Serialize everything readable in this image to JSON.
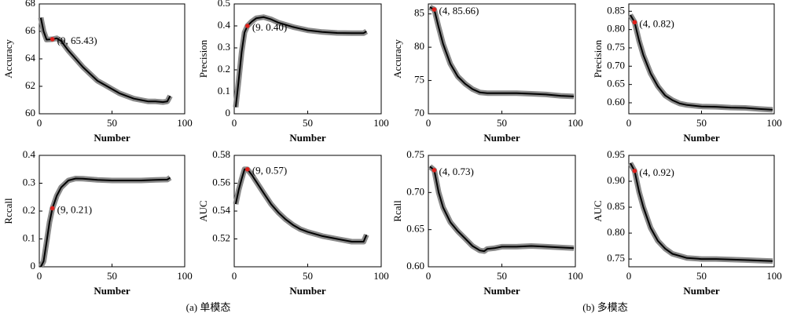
{
  "chart_data": [
    {
      "type": "line",
      "ylabel": "Accuracy",
      "xlabel": "Number",
      "color": "#000000",
      "x": [
        1,
        3,
        5,
        9,
        12,
        15,
        20,
        25,
        30,
        35,
        40,
        45,
        50,
        55,
        60,
        65,
        70,
        75,
        80,
        85,
        88,
        90
      ],
      "values": [
        67,
        66.0,
        65.4,
        65.43,
        65.5,
        65.3,
        64.6,
        64.0,
        63.4,
        62.9,
        62.4,
        62.1,
        61.8,
        61.5,
        61.3,
        61.1,
        61.0,
        60.9,
        60.9,
        60.85,
        60.9,
        61.3
      ],
      "xlim": [
        0,
        100
      ],
      "ylim": [
        60,
        68
      ],
      "xticks": [
        0,
        50,
        100
      ],
      "yticks": [
        60,
        62,
        64,
        66,
        68
      ],
      "highlight": {
        "x": 9,
        "y": 65.43,
        "label": "(9, 65.43)",
        "color": "#e0201b"
      }
    },
    {
      "type": "line",
      "ylabel": "Precision",
      "xlabel": "Number",
      "color": "#000000",
      "x": [
        1,
        3,
        5,
        7,
        9,
        12,
        15,
        20,
        25,
        30,
        40,
        50,
        60,
        70,
        80,
        88,
        90
      ],
      "values": [
        0.03,
        0.15,
        0.28,
        0.37,
        0.4,
        0.42,
        0.435,
        0.44,
        0.43,
        0.415,
        0.395,
        0.38,
        0.372,
        0.368,
        0.367,
        0.367,
        0.375
      ],
      "xlim": [
        0,
        100
      ],
      "ylim": [
        0,
        0.5
      ],
      "xticks": [
        0,
        50,
        100
      ],
      "yticks": [
        0,
        0.1,
        0.2,
        0.3,
        0.4,
        0.5
      ],
      "highlight": {
        "x": 9,
        "y": 0.4,
        "label": "(9. 0.40)",
        "color": "#e0201b"
      }
    },
    {
      "type": "line",
      "ylabel": "Accuracy",
      "xlabel": "Number",
      "color": "#000000",
      "x": [
        1,
        4,
        7,
        10,
        15,
        20,
        25,
        30,
        35,
        40,
        50,
        60,
        70,
        80,
        90,
        99
      ],
      "values": [
        86,
        85.66,
        83,
        80.5,
        77.5,
        75.6,
        74.5,
        73.7,
        73.2,
        73.1,
        73.1,
        73.1,
        73.0,
        72.9,
        72.7,
        72.6
      ],
      "xlim": [
        0,
        100
      ],
      "ylim": [
        70,
        86.5
      ],
      "xticks": [
        0,
        50,
        100
      ],
      "yticks": [
        70,
        75,
        80,
        85
      ],
      "highlight": {
        "x": 4,
        "y": 85.66,
        "label": "(4, 85.66)",
        "color": "#e0201b"
      }
    },
    {
      "type": "line",
      "ylabel": "Precision",
      "xlabel": "Number",
      "color": "#000000",
      "x": [
        1,
        4,
        7,
        10,
        15,
        20,
        25,
        30,
        35,
        40,
        50,
        60,
        70,
        80,
        90,
        99
      ],
      "values": [
        0.84,
        0.82,
        0.77,
        0.73,
        0.68,
        0.645,
        0.62,
        0.607,
        0.598,
        0.594,
        0.59,
        0.589,
        0.587,
        0.586,
        0.583,
        0.581
      ],
      "xlim": [
        0,
        100
      ],
      "ylim": [
        0.57,
        0.87
      ],
      "xticks": [
        0,
        50,
        100
      ],
      "yticks": [
        {
          "value": 0.6,
          "label": "0.60"
        },
        {
          "value": 0.65,
          "label": "0.65"
        },
        {
          "value": 0.7,
          "label": "0.70"
        },
        {
          "value": 0.75,
          "label": "0.75"
        },
        {
          "value": 0.8,
          "label": "0.80"
        },
        {
          "value": 0.85,
          "label": "0.85"
        }
      ],
      "highlight": {
        "x": 4,
        "y": 0.82,
        "label": "(4, 0.82)",
        "color": "#e0201b"
      }
    },
    {
      "type": "line",
      "ylabel": "Rccall",
      "xlabel": "Number",
      "color": "#000000",
      "x": [
        1,
        3,
        5,
        7,
        9,
        12,
        15,
        20,
        25,
        30,
        40,
        50,
        60,
        70,
        80,
        88,
        90
      ],
      "values": [
        0.0,
        0.02,
        0.09,
        0.16,
        0.21,
        0.255,
        0.285,
        0.31,
        0.317,
        0.316,
        0.312,
        0.31,
        0.31,
        0.31,
        0.312,
        0.313,
        0.32
      ],
      "xlim": [
        0,
        100
      ],
      "ylim": [
        0,
        0.4
      ],
      "xticks": [
        0,
        50,
        100
      ],
      "yticks": [
        0,
        0.1,
        0.2,
        0.3,
        0.4
      ],
      "highlight": {
        "x": 9,
        "y": 0.21,
        "label": "(9, 0.21)",
        "color": "#e0201b"
      }
    },
    {
      "type": "line",
      "ylabel": "AUC",
      "xlabel": "Number",
      "color": "#000000",
      "x": [
        1,
        3,
        5,
        7,
        9,
        12,
        15,
        20,
        25,
        30,
        35,
        40,
        45,
        50,
        60,
        70,
        80,
        88,
        90
      ],
      "values": [
        0.545,
        0.555,
        0.563,
        0.57,
        0.57,
        0.566,
        0.561,
        0.553,
        0.545,
        0.539,
        0.534,
        0.53,
        0.527,
        0.525,
        0.522,
        0.52,
        0.518,
        0.518,
        0.523
      ],
      "xlim": [
        0,
        100
      ],
      "ylim": [
        0.5,
        0.58
      ],
      "xticks": [
        0,
        50,
        100
      ],
      "yticks": [
        0.52,
        0.54,
        0.56,
        0.58
      ],
      "highlight": {
        "x": 9,
        "y": 0.57,
        "label": "(9, 0.57)",
        "color": "#e0201b"
      }
    },
    {
      "type": "line",
      "ylabel": "Rcall",
      "xlabel": "Number",
      "color": "#000000",
      "x": [
        1,
        4,
        7,
        10,
        15,
        20,
        25,
        30,
        35,
        38,
        40,
        45,
        50,
        60,
        70,
        80,
        90,
        99
      ],
      "values": [
        0.735,
        0.73,
        0.7,
        0.68,
        0.66,
        0.648,
        0.638,
        0.628,
        0.622,
        0.621,
        0.624,
        0.625,
        0.627,
        0.627,
        0.628,
        0.627,
        0.626,
        0.625
      ],
      "xlim": [
        0,
        100
      ],
      "ylim": [
        0.6,
        0.75
      ],
      "xticks": [
        0,
        50,
        100
      ],
      "yticks": [
        {
          "value": 0.6,
          "label": "0.60"
        },
        {
          "value": 0.65,
          "label": "0.65"
        },
        {
          "value": 0.7,
          "label": "0.70"
        },
        {
          "value": 0.75,
          "label": "0.75"
        }
      ],
      "highlight": {
        "x": 4,
        "y": 0.73,
        "label": "(4, 0.73)",
        "color": "#e0201b"
      }
    },
    {
      "type": "line",
      "ylabel": "AUC",
      "xlabel": "Number",
      "color": "#000000",
      "x": [
        1,
        4,
        7,
        10,
        15,
        20,
        25,
        30,
        40,
        50,
        60,
        70,
        80,
        90,
        99
      ],
      "values": [
        0.935,
        0.92,
        0.88,
        0.85,
        0.81,
        0.785,
        0.77,
        0.76,
        0.752,
        0.75,
        0.75,
        0.749,
        0.748,
        0.747,
        0.746
      ],
      "xlim": [
        0,
        100
      ],
      "ylim": [
        0.735,
        0.95
      ],
      "xticks": [
        0,
        50,
        100
      ],
      "yticks": [
        {
          "value": 0.75,
          "label": "0.75"
        },
        {
          "value": 0.8,
          "label": "0.80"
        },
        {
          "value": 0.85,
          "label": "0.85"
        },
        {
          "value": 0.9,
          "label": "0.90"
        },
        {
          "value": 0.95,
          "label": "0.95"
        }
      ],
      "highlight": {
        "x": 4,
        "y": 0.92,
        "label": "(4, 0.92)",
        "color": "#e0201b"
      }
    }
  ],
  "captions": [
    "(a) 单模态",
    "(b) 多模态"
  ]
}
